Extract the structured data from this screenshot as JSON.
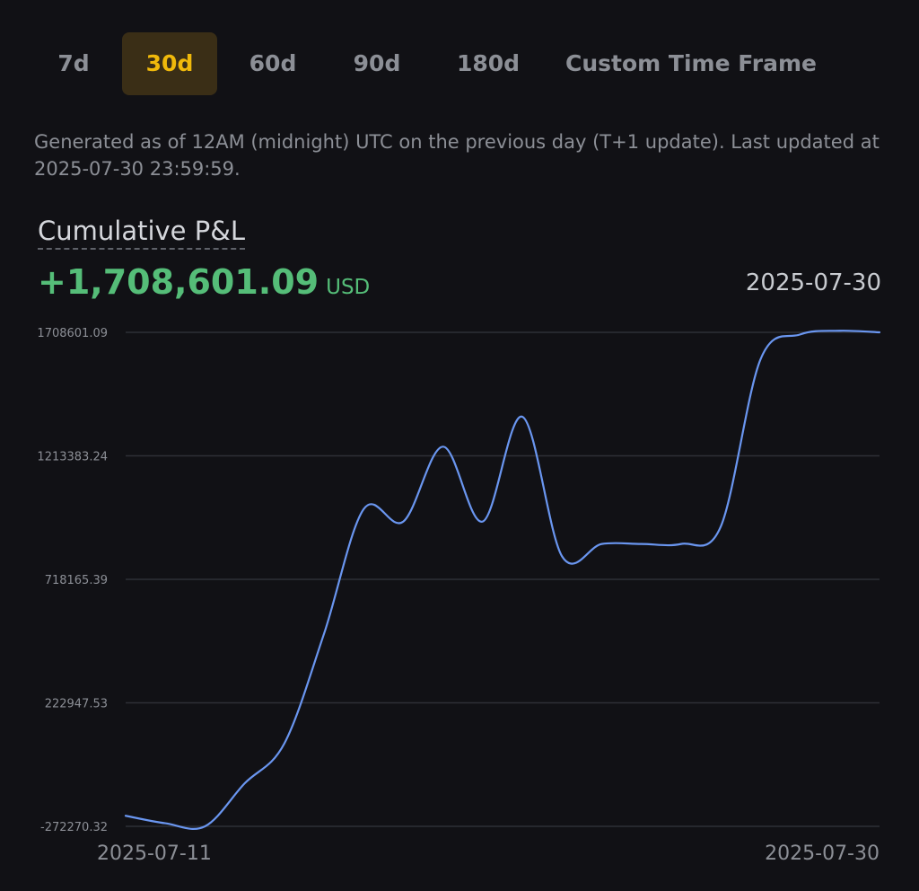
{
  "tabs": [
    {
      "label": "7d",
      "active": false
    },
    {
      "label": "30d",
      "active": true
    },
    {
      "label": "60d",
      "active": false
    },
    {
      "label": "90d",
      "active": false
    },
    {
      "label": "180d",
      "active": false
    },
    {
      "label": "Custom Time Frame",
      "active": false
    }
  ],
  "note": "Generated as of 12AM (midnight) UTC on the previous day (T+1 update). Last updated at 2025-07-30 23:59:59.",
  "header": {
    "title": "Cumulative P&L",
    "total_value": "+1,708,601.09",
    "total_unit": "USD",
    "selected_date": "2025-07-30"
  },
  "colors": {
    "accent": "#f0b90b",
    "positive": "#55bd78",
    "line": "#6a96f0",
    "grid": "#2e3036"
  },
  "chart_data": {
    "type": "line",
    "title": "Cumulative P&L",
    "xlabel": "",
    "ylabel": "",
    "grid": true,
    "x": [
      "2025-07-11",
      "2025-07-12",
      "2025-07-13",
      "2025-07-14",
      "2025-07-15",
      "2025-07-16",
      "2025-07-17",
      "2025-07-18",
      "2025-07-19",
      "2025-07-20",
      "2025-07-21",
      "2025-07-22",
      "2025-07-23",
      "2025-07-24",
      "2025-07-25",
      "2025-07-26",
      "2025-07-27",
      "2025-07-28",
      "2025-07-29",
      "2025-07-30"
    ],
    "x_tick_labels": [
      "2025-07-11",
      "2025-07-30"
    ],
    "y_tick_labels": [
      "1708601.09",
      "1213383.24",
      "718165.39",
      "222947.53",
      "-272270.32"
    ],
    "ylim": [
      -272270.32,
      1708601.09
    ],
    "series": [
      {
        "values": [
          -230000,
          -260000,
          -272270,
          -100000,
          60000,
          500000,
          1000000,
          950000,
          1250000,
          950000,
          1370000,
          810000,
          860000,
          860000,
          860000,
          930000,
          1600000,
          1700000,
          1715000,
          1708601.09
        ]
      }
    ]
  }
}
